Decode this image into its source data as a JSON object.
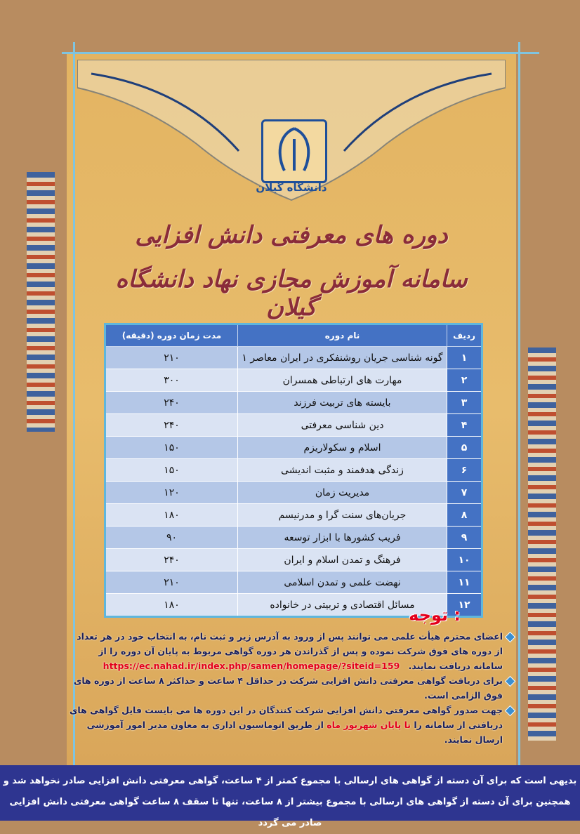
{
  "header": {
    "logo_text": "دانشگاه گیلان",
    "title_line1": "دوره های معرفتی دانش افزایی",
    "title_line2": "سامانه آموزش مجازی نهاد دانشگاه گیلان"
  },
  "table": {
    "headers": {
      "row": "ردیف",
      "name": "نام دوره",
      "duration": "مدت زمان دوره (دقیقه)"
    },
    "rows": [
      {
        "row": "۱",
        "name": "گونه شناسی جریان روشنفکری در ایران معاصر ۱",
        "duration": "۲۱۰"
      },
      {
        "row": "۲",
        "name": "مهارت های ارتباطی همسران",
        "duration": "۳۰۰"
      },
      {
        "row": "۳",
        "name": "بایسته های تربیت فرزند",
        "duration": "۲۴۰"
      },
      {
        "row": "۴",
        "name": "دین شناسی معرفتی",
        "duration": "۲۴۰"
      },
      {
        "row": "۵",
        "name": "اسلام و سکولاریزم",
        "duration": "۱۵۰"
      },
      {
        "row": "۶",
        "name": "زندگی هدفمند و مثبت اندیشی",
        "duration": "۱۵۰"
      },
      {
        "row": "۷",
        "name": "مدیریت زمان",
        "duration": "۱۲۰"
      },
      {
        "row": "۸",
        "name": "جریان‌های سنت گرا و مدرنیسم",
        "duration": "۱۸۰"
      },
      {
        "row": "۹",
        "name": "فریب کشورها با ابزار توسعه",
        "duration": "۹۰"
      },
      {
        "row": "۱۰",
        "name": "فرهنگ و تمدن اسلام و ایران",
        "duration": "۲۴۰"
      },
      {
        "row": "۱۱",
        "name": "نهضت علمی و تمدن اسلامی",
        "duration": "۲۱۰"
      },
      {
        "row": "۱۲",
        "name": "مسائل اقتصادی و تربیتی در خانواده",
        "duration": "۱۸۰"
      }
    ]
  },
  "notice": {
    "title": "توجه :",
    "item1": "اعضای محترم هیأت علمی می توانند پس از ورود به آدرس زیر و ثبت نام، به انتخاب خود در هر تعداد از دوره های فوق شرکت نموده و پس از گذراندن هر دوره گواهی مربوط به پایان آن دوره را از سامانه دریافت نمایند.",
    "url": "https://ec.nahad.ir/index.php/samen/homepage/?siteid=159",
    "item2": "برای دریافت گواهی معرفتی دانش افزایی شرکت در حداقل ۴ ساعت و حداکثر ۸ ساعت از دوره های فوق الزامی است.",
    "item3_a": "جهت صدور گواهی معرفتی دانش افزایی شرکت کنندگان در این دوره ها می بایست فایل گواهی های دریافتی از سامانه را",
    "item3_highlight": "تا پایان شهریور ماه",
    "item3_b": "از طریق اتوماسیون اداری به معاون مدیر امور آموزشی ارسال نمایند."
  },
  "footer": {
    "line1": "بدیهی است که برای آن دسته از گواهی های ارسالی با مجموع کمتر از ۴ ساعت، گواهی معرفتی دانش افزایی صادر نخواهد شد و",
    "line2": "همچنین برای آن دسته از گواهی های ارسالی با مجموع بیشتر از ۸ ساعت، تنها تا سقف ۸ ساعت گواهی معرفتی دانش افزایی صادر می گردد"
  },
  "colors": {
    "background": "#b88c60",
    "panel": "#e3b462",
    "table_header": "#4472c4",
    "accent_red": "#e3001b",
    "footer_band": "#2e3590"
  }
}
